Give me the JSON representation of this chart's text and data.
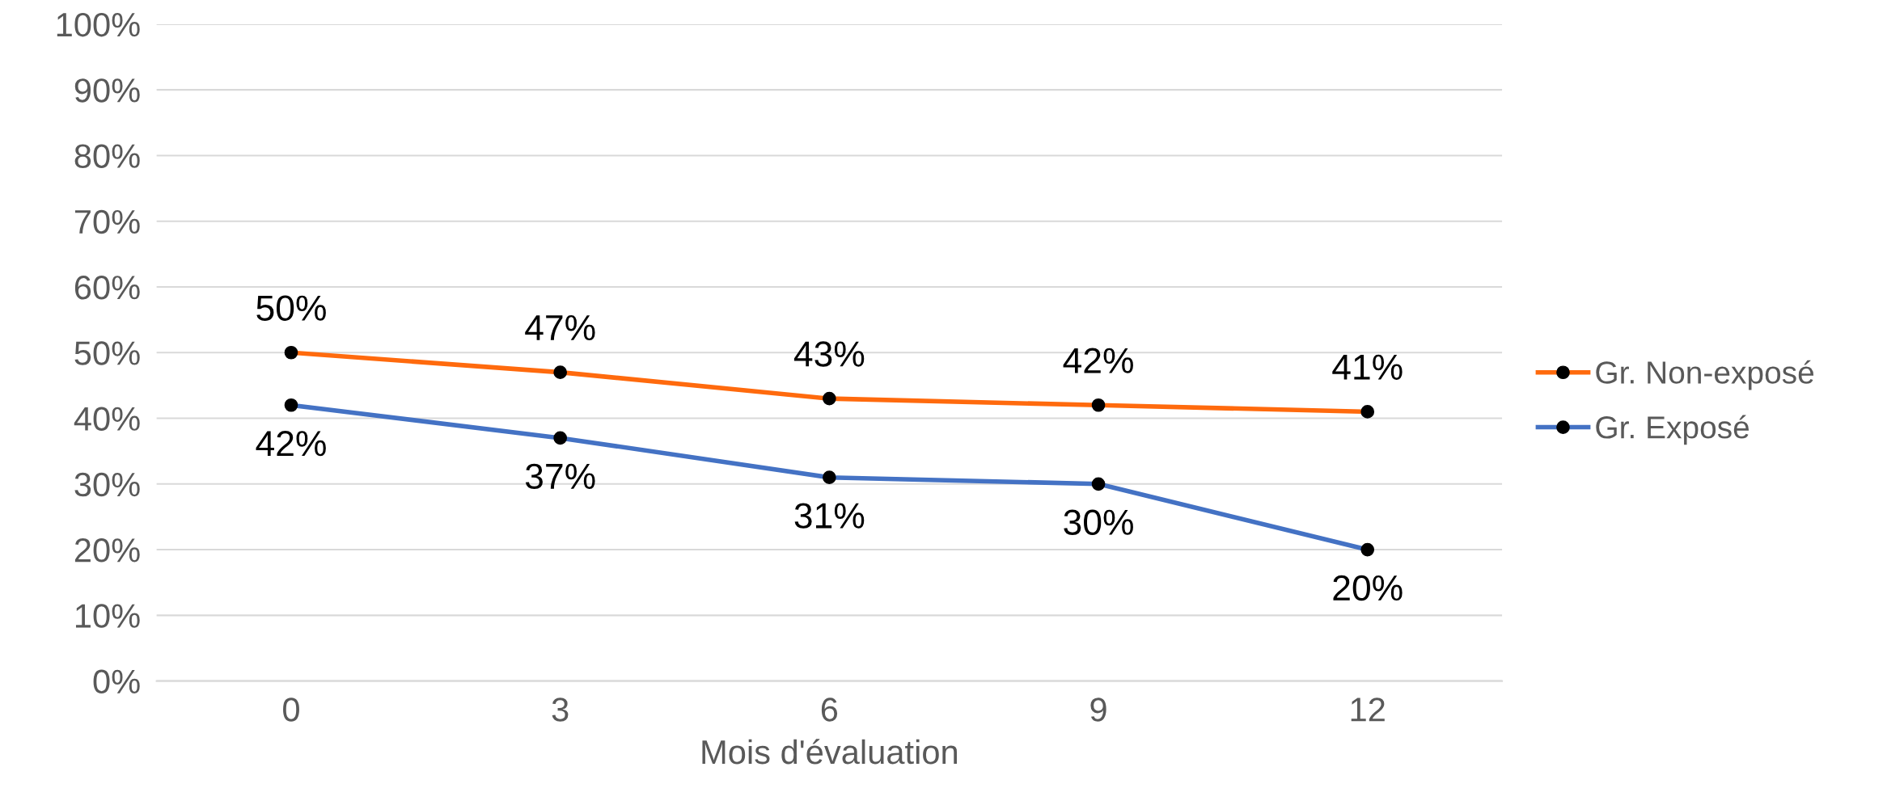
{
  "chart_data": {
    "type": "line",
    "xlabel": "Mois d'évaluation",
    "categories": [
      "0",
      "3",
      "6",
      "9",
      "12"
    ],
    "series": [
      {
        "name": "Gr. Non-exposé",
        "color": "#ff6a0d",
        "values": [
          50,
          47,
          43,
          42,
          41
        ],
        "value_labels": [
          "50%",
          "47%",
          "43%",
          "42%",
          "41%"
        ]
      },
      {
        "name": "Gr. Exposé",
        "color": "#4472c4",
        "values": [
          42,
          37,
          31,
          30,
          20
        ],
        "value_labels": [
          "42%",
          "37%",
          "31%",
          "30%",
          "20%"
        ]
      }
    ],
    "ylim": [
      0,
      100
    ],
    "yticks": [
      {
        "value": 0,
        "label": "0%"
      },
      {
        "value": 10,
        "label": "10%"
      },
      {
        "value": 20,
        "label": "20%"
      },
      {
        "value": 30,
        "label": "30%"
      },
      {
        "value": 40,
        "label": "40%"
      },
      {
        "value": 50,
        "label": "50%"
      },
      {
        "value": 60,
        "label": "60%"
      },
      {
        "value": 70,
        "label": "70%"
      },
      {
        "value": 80,
        "label": "80%"
      },
      {
        "value": 90,
        "label": "90%"
      },
      {
        "value": 100,
        "label": "100%"
      }
    ],
    "grid": "y",
    "legend": "right",
    "marker": "circle",
    "line_style": "solid"
  }
}
